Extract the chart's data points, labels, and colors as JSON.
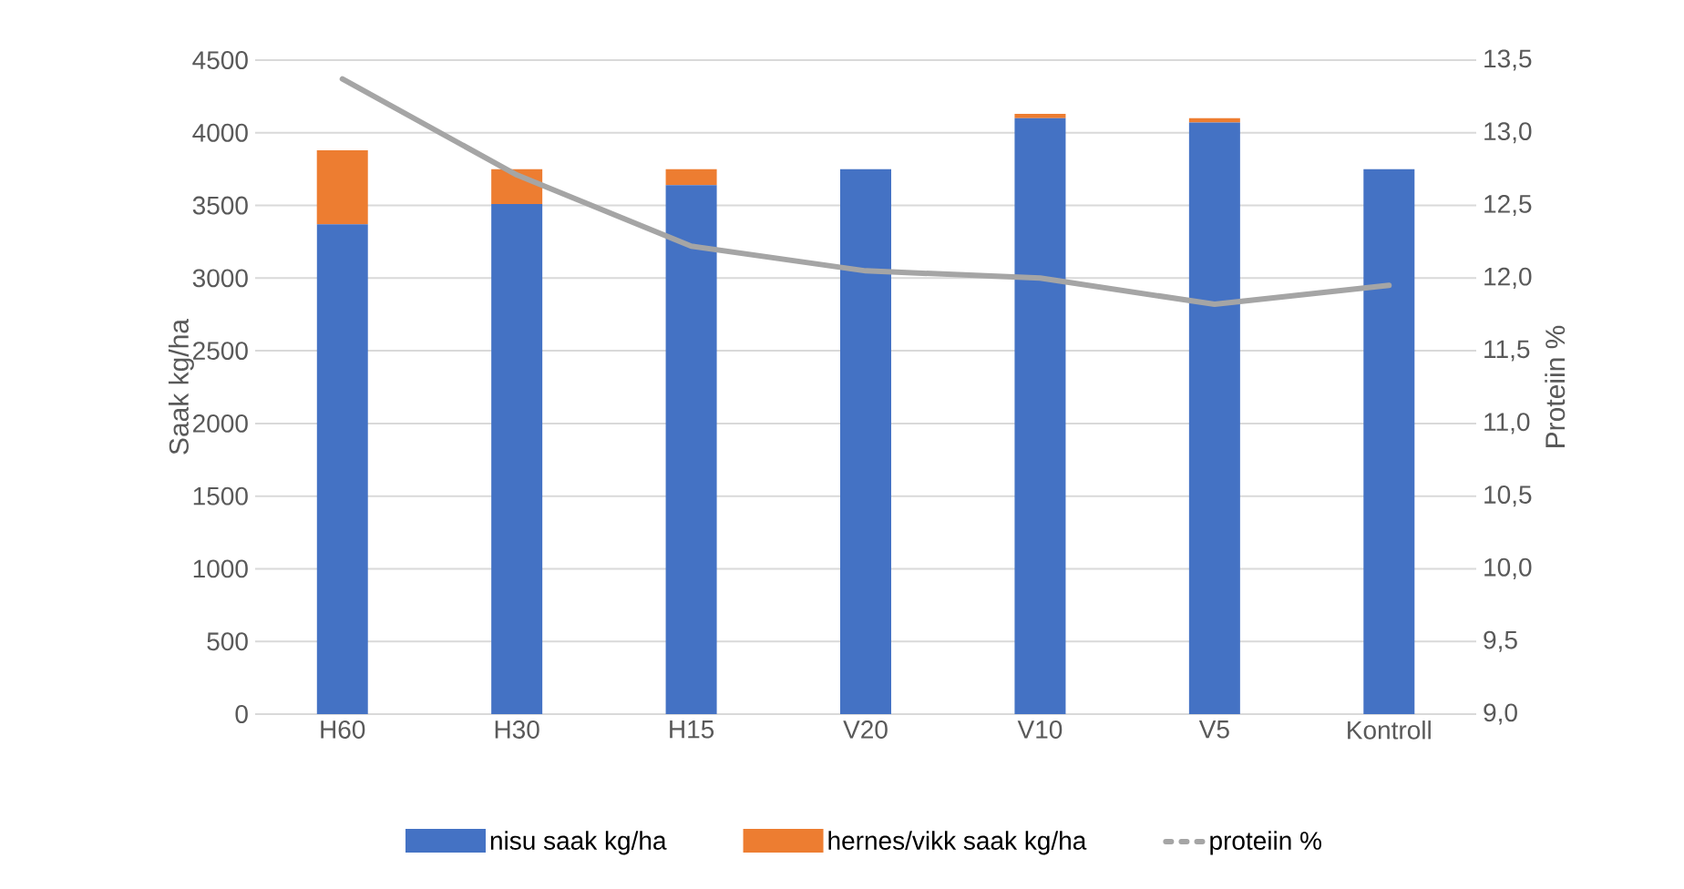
{
  "chart_data": {
    "type": "bar",
    "stacked": true,
    "categories": [
      "H60",
      "H30",
      "H15",
      "V20",
      "V10",
      "V5",
      "Kontroll"
    ],
    "series": [
      {
        "name": "nisu saak kg/ha",
        "color": "#4472c4",
        "values": [
          3370,
          3510,
          3640,
          3750,
          4100,
          4070,
          3750
        ]
      },
      {
        "name": "hernes/vikk saak kg/ha",
        "color": "#ed7d31",
        "values": [
          510,
          240,
          110,
          0,
          30,
          30,
          0
        ]
      },
      {
        "name": "proteiin %",
        "color": "#a5a5a5",
        "type": "line",
        "axis": "y2",
        "values": [
          13.37,
          12.71,
          12.22,
          12.05,
          12.0,
          11.82,
          11.95
        ]
      }
    ],
    "ylabel": "Saak kg/ha",
    "y2label": "Proteiin %",
    "ylim": [
      0,
      4500
    ],
    "yticks": [
      0,
      500,
      1000,
      1500,
      2000,
      2500,
      3000,
      3500,
      4000,
      4500
    ],
    "y2lim": [
      9,
      13.5
    ],
    "y2ticks": [
      {
        "value": 9,
        "label": "9,0"
      },
      {
        "value": 9.5,
        "label": "9,5"
      },
      {
        "value": 10,
        "label": "10,0"
      },
      {
        "value": 10.5,
        "label": "10,5"
      },
      {
        "value": 11,
        "label": "11,0"
      },
      {
        "value": 11.5,
        "label": "11,5"
      },
      {
        "value": 12,
        "label": "12,0"
      },
      {
        "value": 12.5,
        "label": "12,5"
      },
      {
        "value": 13,
        "label": "13,0"
      },
      {
        "value": 13.5,
        "label": "13,5"
      }
    ],
    "grid": "y",
    "legend": "bottom"
  }
}
